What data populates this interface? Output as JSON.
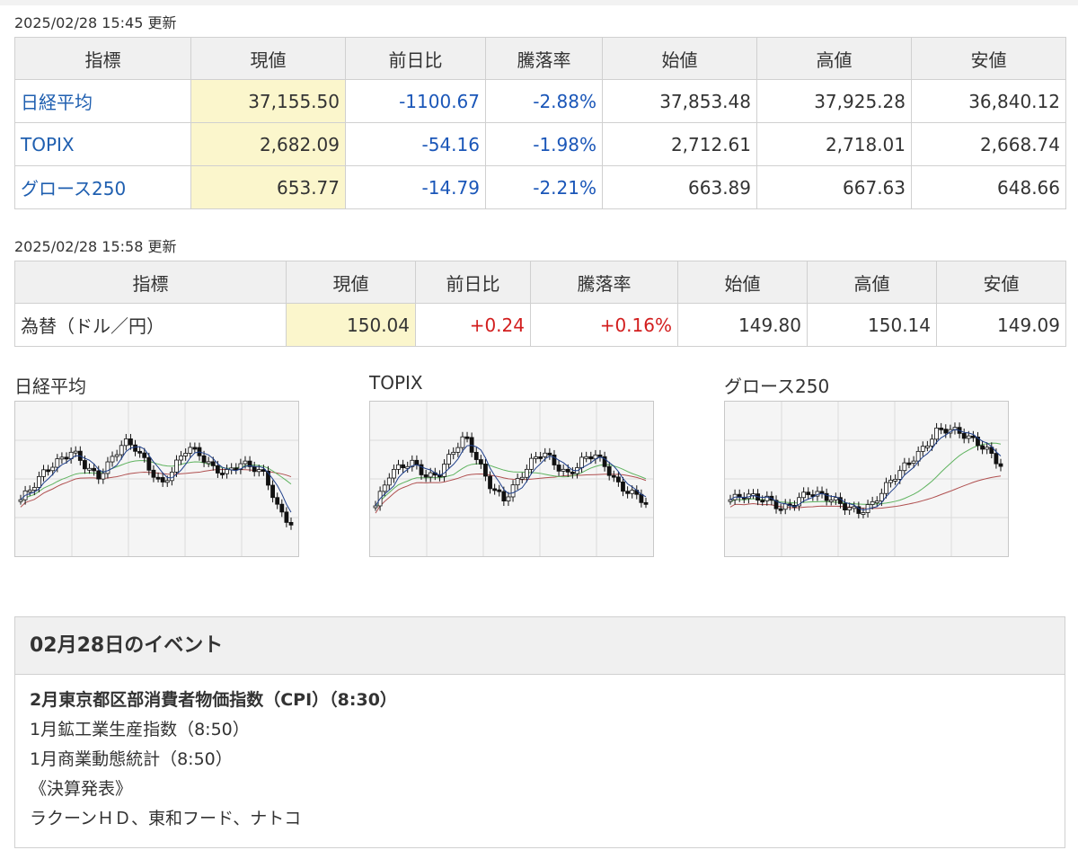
{
  "stock_table": {
    "timestamp": "2025/02/28 15:45 更新",
    "headers": [
      "指標",
      "現値",
      "前日比",
      "騰落率",
      "始値",
      "高値",
      "安値"
    ],
    "rows": [
      {
        "name": "日経平均",
        "current": "37,155.50",
        "change": "-1100.67",
        "rate": "-2.88%",
        "open": "37,853.48",
        "high": "37,925.28",
        "low": "36,840.12"
      },
      {
        "name": "TOPIX",
        "current": "2,682.09",
        "change": "-54.16",
        "rate": "-1.98%",
        "open": "2,712.61",
        "high": "2,718.01",
        "low": "2,668.74"
      },
      {
        "name": "グロース250",
        "current": "653.77",
        "change": "-14.79",
        "rate": "-2.21%",
        "open": "663.89",
        "high": "667.63",
        "low": "648.66"
      }
    ]
  },
  "fx_table": {
    "timestamp": "2025/02/28 15:58 更新",
    "headers": [
      "指標",
      "現値",
      "前日比",
      "騰落率",
      "始値",
      "高値",
      "安値"
    ],
    "rows": [
      {
        "name": "為替（ドル／円）",
        "current": "150.04",
        "change": "+0.24",
        "rate": "+0.16%",
        "open": "149.80",
        "high": "150.14",
        "low": "149.09"
      }
    ]
  },
  "charts": [
    {
      "title": "日経平均"
    },
    {
      "title": "TOPIX"
    },
    {
      "title": "グロース250"
    }
  ],
  "colors": {
    "negative": "#1a56b8",
    "positive": "#d21e1e",
    "highlight": "#fbf6cc",
    "ma_short": "#1f3f8a",
    "ma_mid": "#5fb35f",
    "ma_long": "#b05050"
  },
  "events": {
    "title": "02月28日のイベント",
    "items": [
      "2月東京都区部消費者物価指数（CPI）（8:30）",
      "1月鉱工業生産指数（8:50）",
      "1月商業動態統計（8:50）",
      "《決算発表》",
      "ラクーンＨＤ、東和フード、ナトコ"
    ]
  }
}
